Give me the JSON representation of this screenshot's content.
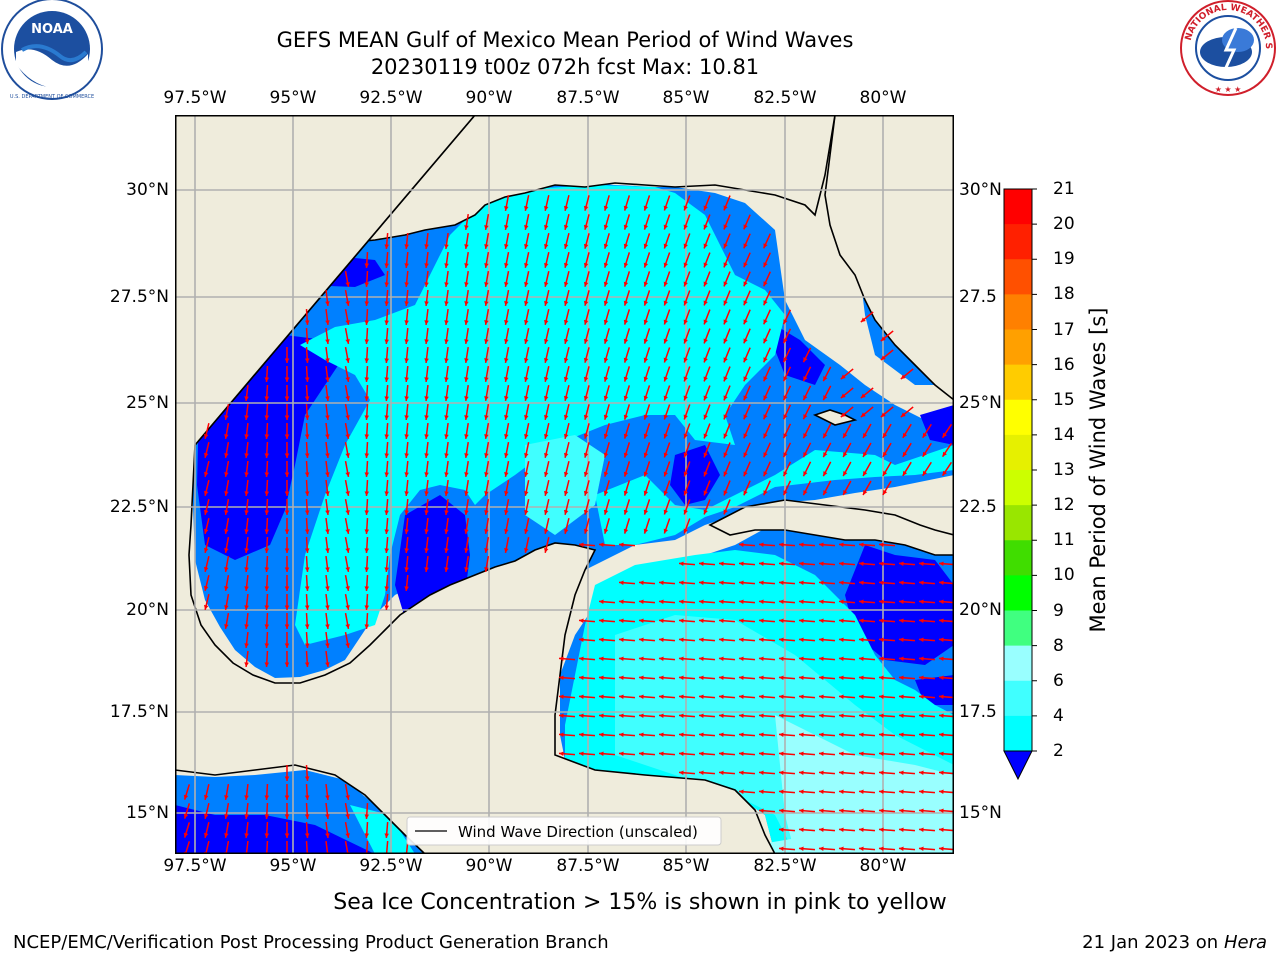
{
  "header": {
    "title_line1": "GEFS MEAN Gulf of Mexico Mean Period of Wind Waves",
    "title_line2": "20230119 t00z 072h fcst   Max: 10.81"
  },
  "logos": {
    "noaa_text": "NOAA",
    "noaa_ring": "NATIONAL OCEANIC AND ATMOSPHERIC ADMINISTRATION · U.S. DEPARTMENT OF COMMERCE",
    "nws_ring": "NATIONAL WEATHER SERVICE"
  },
  "map": {
    "lon_labels": [
      "97.5°W",
      "95°W",
      "92.5°W",
      "90°W",
      "87.5°W",
      "85°W",
      "82.5°W",
      "80°W"
    ],
    "lat_labels_left": [
      "30°N",
      "27.5°N",
      "25°N",
      "22.5°N",
      "20°N",
      "17.5°N",
      "15°N"
    ],
    "lat_labels_right": [
      "30°N",
      "27.5",
      "25°N",
      "22.5",
      "20°N",
      "17.5",
      "15°N"
    ],
    "legend_label": "Wind Wave Direction (unscaled)",
    "land_color": "#efecdc",
    "arrow_color": "#ff0000"
  },
  "colorbar": {
    "label": "Mean Period of Wind Waves [s]",
    "ticks": [
      "2",
      "4",
      "6",
      "8",
      "9",
      "10",
      "11",
      "12",
      "13",
      "14",
      "15",
      "16",
      "17",
      "18",
      "19",
      "20",
      "21"
    ],
    "colors": [
      "#0000ff",
      "#0080ff",
      "#00ffff",
      "#40ffff",
      "#99ffff",
      "#40ff80",
      "#00ff00",
      "#40dd00",
      "#99e600",
      "#ccff00",
      "#e6f000",
      "#ffff00",
      "#ffcc00",
      "#ffa000",
      "#ff8000",
      "#ff5000",
      "#ff2000",
      "#ff0000"
    ]
  },
  "note": "Sea Ice Concentration > 15% is shown in pink to yellow",
  "footer": {
    "left": "NCEP/EMC/Verification Post Processing Product Generation Branch",
    "right_date": "21 Jan 2023 on ",
    "right_machine": "Hera"
  }
}
